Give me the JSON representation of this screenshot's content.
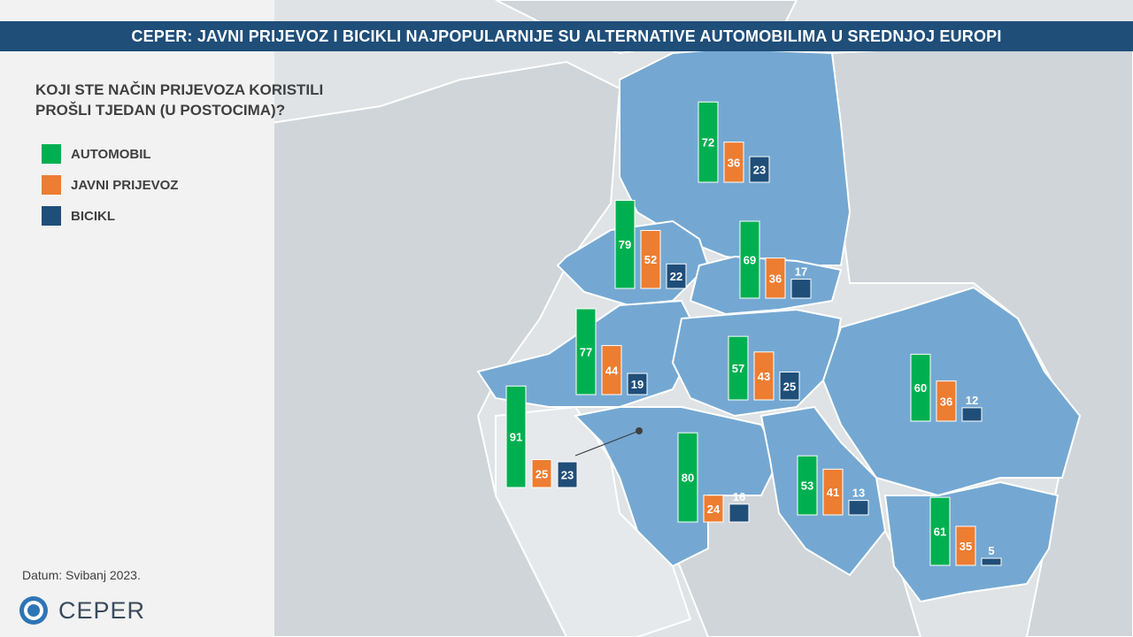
{
  "title": "CEPER: JAVNI PRIJEVOZ I BICIKLI NAJPOPULARNIJE  SU ALTERNATIVE AUTOMOBILIMA U SREDNJOJ EUROPI",
  "question": "KOJI STE NAČIN PRIJEVOZA KORISTILI\nPROŠLI TJEDAN (U POSTOCIMA)?",
  "date_note": "Datum: Svibanj 2023.",
  "logo_text": "CEPER",
  "colors": {
    "automobil": "#00b050",
    "javni_prijevoz": "#ed7d31",
    "bicikl": "#1f4e79",
    "map_highlight": "#74a8d2",
    "map_land": "#cfd5d9",
    "sea": "#dfe3e6",
    "title_bar": "#1f4e79"
  },
  "legend": [
    {
      "label": "AUTOMOBIL",
      "color": "#00b050"
    },
    {
      "label": "JAVNI PRIJEVOZ",
      "color": "#ed7d31"
    },
    {
      "label": "BICIKL",
      "color": "#1f4e79"
    }
  ],
  "chart_data": {
    "type": "bar",
    "unit": "%",
    "series_names": [
      "AUTOMOBIL",
      "JAVNI PRIJEVOZ",
      "BICIKL"
    ],
    "groups": [
      {
        "values": [
          72,
          36,
          23
        ]
      },
      {
        "values": [
          79,
          52,
          22
        ]
      },
      {
        "values": [
          69,
          36,
          17
        ]
      },
      {
        "values": [
          77,
          44,
          19
        ]
      },
      {
        "values": [
          57,
          43,
          25
        ]
      },
      {
        "values": [
          60,
          36,
          12
        ]
      },
      {
        "values": [
          91,
          25,
          23
        ]
      },
      {
        "values": [
          80,
          24,
          16
        ]
      },
      {
        "values": [
          53,
          41,
          13
        ]
      },
      {
        "values": [
          61,
          35,
          5
        ]
      }
    ]
  }
}
